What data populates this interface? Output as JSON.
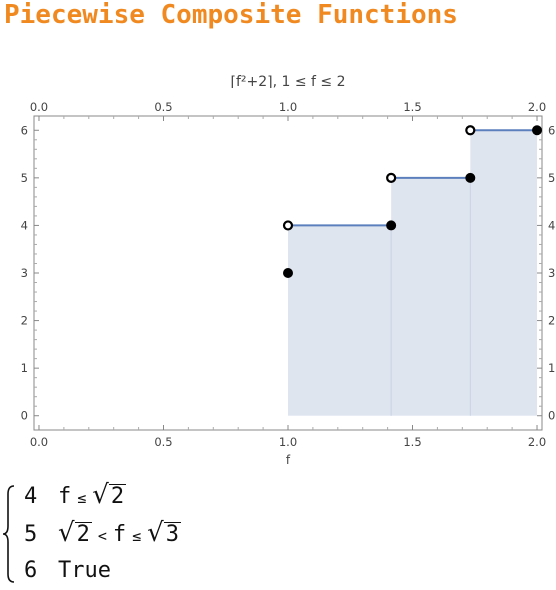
{
  "page": {
    "title": "Piecewise Composite Functions"
  },
  "chart_data": {
    "type": "line",
    "title": "⌈f²+2⌉,  1 ≤ f ≤ 2",
    "xlabel": "f",
    "ylabel": "",
    "xlim": [
      -0.02,
      2.02
    ],
    "ylim": [
      -0.3,
      6.3
    ],
    "xticks": [
      0.0,
      0.5,
      1.0,
      1.5,
      2.0
    ],
    "xtick_labels": [
      "0.0",
      "0.5",
      "1.0",
      "1.5",
      "2.0"
    ],
    "yticks": [
      0,
      1,
      2,
      3,
      4,
      5,
      6
    ],
    "ytick_labels": [
      "0",
      "1",
      "2",
      "3",
      "4",
      "5",
      "6"
    ],
    "fill_to": 0,
    "segments": [
      {
        "x_start": 1.0,
        "x_end": 1.4142,
        "y": 4
      },
      {
        "x_start": 1.4142,
        "x_end": 1.7321,
        "y": 5
      },
      {
        "x_start": 1.7321,
        "x_end": 2.0,
        "y": 6
      }
    ],
    "closed_points": [
      {
        "x": 1.0,
        "y": 3
      },
      {
        "x": 1.4142,
        "y": 4
      },
      {
        "x": 1.7321,
        "y": 5
      },
      {
        "x": 2.0,
        "y": 6
      }
    ],
    "open_points": [
      {
        "x": 1.0,
        "y": 4
      },
      {
        "x": 1.4142,
        "y": 5
      },
      {
        "x": 1.7321,
        "y": 6
      }
    ],
    "grid": false,
    "frame_ticks": "all-sides",
    "line_color": "#5b7fbd",
    "fill_color": "#dfe5ef"
  },
  "piecewise": {
    "rows": [
      {
        "value": "4",
        "cond_a": "f",
        "rel_a": "≤",
        "cond_b": "√",
        "cond_b_arg": "2"
      },
      {
        "value": "5",
        "cond_pre": "√",
        "cond_pre_arg": "2",
        "rel_a": "<",
        "cond_a": "f",
        "rel_b": "≤",
        "cond_b": "√",
        "cond_b_arg": "3"
      },
      {
        "value": "6",
        "text": "True"
      }
    ]
  }
}
